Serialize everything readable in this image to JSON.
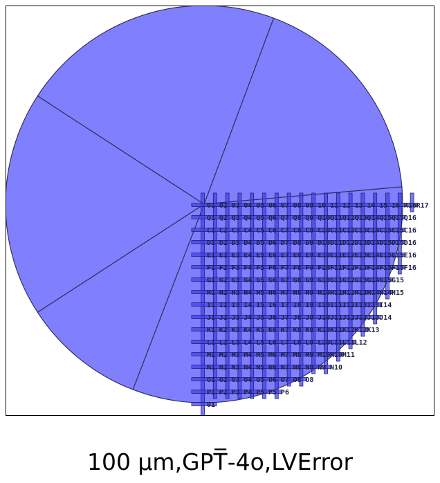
{
  "caption": "100 µm,GPT̅-4o,LVError",
  "colors": {
    "wedge_fill": "#8080ff",
    "wedge_stroke": "#303060",
    "bar_fill": "#4040e0",
    "bar_stroke": "#202080"
  },
  "wedges": [
    {
      "start_deg": -69.5,
      "end_deg": -5
    },
    {
      "start_deg": -5,
      "end_deg": 111
    },
    {
      "start_deg": 111,
      "end_deg": 147
    },
    {
      "start_deg": 147,
      "end_deg": 213
    },
    {
      "start_deg": 213,
      "end_deg": 290.5
    }
  ],
  "grid": {
    "row_labels": [
      [
        "01",
        "02",
        "03",
        "04",
        "05",
        "06",
        "07",
        "08",
        "09",
        "10",
        "11",
        "12",
        "13",
        "14",
        "15",
        "16",
        "R16",
        "R17"
      ],
      [
        "Q1",
        "Q2",
        "Q3",
        "Q4",
        "Q5",
        "Q6",
        "Q7",
        "Q8",
        "Q9",
        "Q10",
        "Q11",
        "Q12",
        "Q13",
        "Q14",
        "Q15",
        "Q15",
        "Q16"
      ],
      [
        "C1",
        "C2",
        "C3",
        "C4",
        "C5",
        "C6",
        "C7",
        "C8",
        "C9",
        "C10",
        "C11",
        "C12",
        "C13",
        "C14",
        "C15",
        "C15",
        "C16"
      ],
      [
        "D1",
        "D2",
        "D3",
        "D4",
        "D5",
        "D6",
        "D7",
        "D8",
        "D9",
        "D10",
        "D11",
        "D12",
        "D13",
        "D14",
        "D15",
        "D15",
        "D16"
      ],
      [
        "E1",
        "E2",
        "E3",
        "E4",
        "E5",
        "E6",
        "E7",
        "E8",
        "E9",
        "E10",
        "E11",
        "E12",
        "E13",
        "E14",
        "E15",
        "E15",
        "E16"
      ],
      [
        "F1",
        "F2",
        "F3",
        "F4",
        "F5",
        "F6",
        "F7",
        "F8",
        "F9",
        "F10",
        "F11",
        "F12",
        "F13",
        "F14",
        "F15",
        "F15",
        "F16"
      ],
      [
        "G1",
        "G2",
        "G3",
        "G4",
        "G5",
        "G6",
        "G7",
        "G8",
        "G9",
        "G10",
        "G11",
        "G12",
        "G13",
        "G14",
        "G15",
        "G15"
      ],
      [
        "H1",
        "H2",
        "H3",
        "H4",
        "H5",
        "H6",
        "H7",
        "H8",
        "H9",
        "H10",
        "H11",
        "H12",
        "H13",
        "H14",
        "H14",
        "H15"
      ],
      [
        "I1",
        "I2",
        "I3",
        "I4",
        "I5",
        "I6",
        "I7",
        "I8",
        "I9",
        "I10",
        "I11",
        "I12",
        "I13",
        "I13",
        "I14"
      ],
      [
        "J1",
        "J2",
        "J3",
        "J4",
        "J5",
        "J6",
        "J7",
        "J8",
        "J9",
        "J10",
        "J11",
        "J12",
        "J13",
        "J13",
        "J14"
      ],
      [
        "K1",
        "K2",
        "K3",
        "K4",
        "K5",
        "K6",
        "K7",
        "K8",
        "K9",
        "K10",
        "K11",
        "K12",
        "K12",
        "K13"
      ],
      [
        "L1",
        "L2",
        "L3",
        "L4",
        "L5",
        "L6",
        "L7",
        "L8",
        "L9",
        "L10",
        "L11",
        "L11",
        "L12"
      ],
      [
        "M1",
        "M2",
        "M3",
        "M4",
        "M5",
        "M6",
        "M7",
        "M8",
        "M9",
        "M10",
        "M10",
        "M11"
      ],
      [
        "N1",
        "N2",
        "N3",
        "N4",
        "N5",
        "N6",
        "N7",
        "N8",
        "N9",
        "N9",
        "N10"
      ],
      [
        "O1",
        "O2",
        "O3",
        "O4",
        "O5",
        "O6",
        "O7",
        "O8",
        "O8"
      ],
      [
        "P1",
        "P2",
        "P3",
        "P4",
        "P5",
        "P5",
        "P6"
      ],
      [
        "01"
      ]
    ]
  }
}
